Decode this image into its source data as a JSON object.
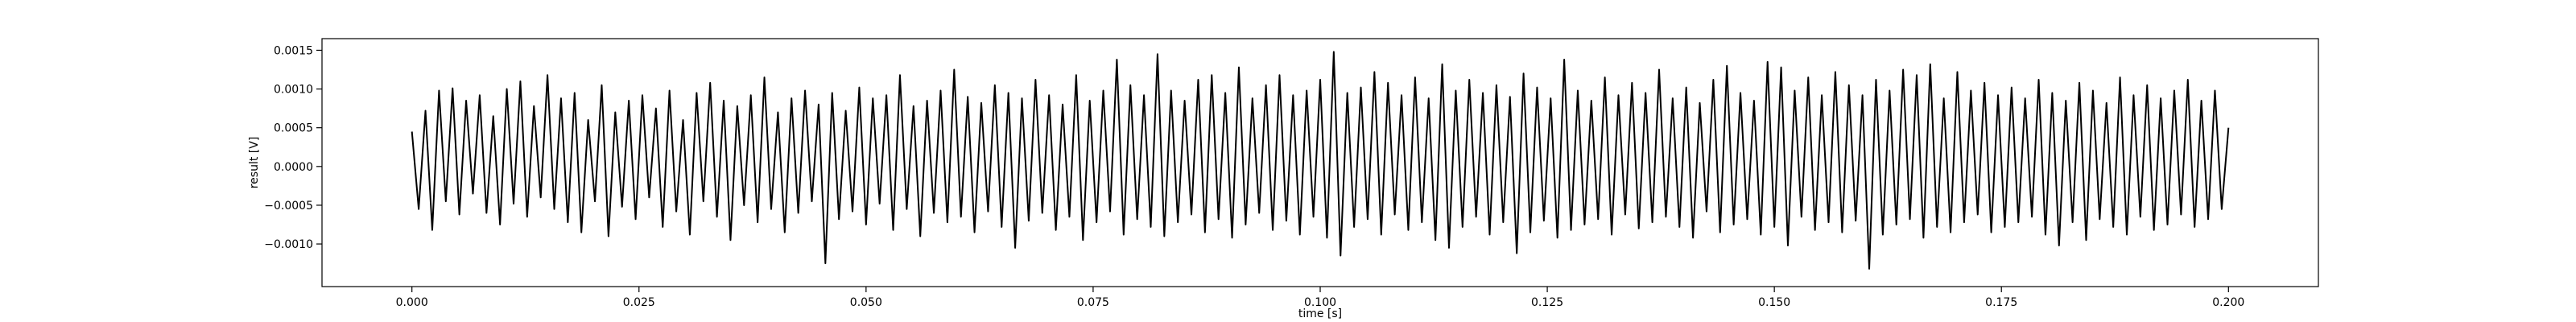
{
  "chart_data": {
    "type": "line",
    "title": "",
    "xlabel": "time [s]",
    "ylabel": "result [V]",
    "xlim": [
      -0.0099,
      0.2099
    ],
    "ylim": [
      -0.00155,
      0.00165
    ],
    "grid": false,
    "line_color": "#000000",
    "xticks": [
      0.0,
      0.025,
      0.05,
      0.075,
      0.1,
      0.125,
      0.15,
      0.175,
      0.2
    ],
    "xtick_labels": [
      "0.000",
      "0.025",
      "0.050",
      "0.075",
      "0.100",
      "0.125",
      "0.150",
      "0.175",
      "0.200"
    ],
    "yticks": [
      -0.001,
      -0.0005,
      0.0,
      0.0005,
      0.001,
      0.0015
    ],
    "ytick_labels": [
      "−0.0010",
      "−0.0005",
      "0.0000",
      "0.0005",
      "0.0010",
      "0.0015"
    ],
    "series": [
      {
        "x_start": 0.0,
        "x_end": 0.2,
        "y": [
          0.00045,
          -0.00055,
          0.00072,
          -0.00082,
          0.00098,
          -0.00045,
          0.00101,
          -0.00062,
          0.00085,
          -0.00035,
          0.00092,
          -0.0006,
          0.00065,
          -0.00075,
          0.001,
          -0.00048,
          0.0011,
          -0.00065,
          0.00078,
          -0.0004,
          0.00118,
          -0.00055,
          0.00088,
          -0.00072,
          0.00095,
          -0.00085,
          0.0006,
          -0.00045,
          0.00105,
          -0.0009,
          0.0007,
          -0.00052,
          0.00085,
          -0.00068,
          0.00092,
          -0.0004,
          0.00075,
          -0.00078,
          0.00098,
          -0.00058,
          0.0006,
          -0.00088,
          0.00095,
          -0.00045,
          0.00108,
          -0.00065,
          0.00085,
          -0.00095,
          0.00078,
          -0.0005,
          0.00092,
          -0.00072,
          0.00115,
          -0.00055,
          0.0007,
          -0.00085,
          0.00088,
          -0.0006,
          0.00098,
          -0.00045,
          0.0008,
          -0.00125,
          0.00095,
          -0.00068,
          0.00072,
          -0.00058,
          0.00102,
          -0.00075,
          0.00088,
          -0.00048,
          0.00092,
          -0.00082,
          0.00118,
          -0.00055,
          0.00078,
          -0.0009,
          0.00085,
          -0.0006,
          0.00098,
          -0.00072,
          0.00125,
          -0.00065,
          0.0009,
          -0.00085,
          0.00082,
          -0.00058,
          0.00105,
          -0.00078,
          0.00095,
          -0.00105,
          0.00088,
          -0.0007,
          0.00112,
          -0.0006,
          0.00092,
          -0.00082,
          0.0008,
          -0.00065,
          0.00118,
          -0.00095,
          0.00085,
          -0.00072,
          0.00098,
          -0.00058,
          0.00138,
          -0.00088,
          0.00105,
          -0.00068,
          0.00092,
          -0.00078,
          0.00145,
          -0.0009,
          0.00098,
          -0.00072,
          0.00085,
          -0.00062,
          0.00112,
          -0.00085,
          0.00118,
          -0.00068,
          0.00095,
          -0.00092,
          0.00128,
          -0.00075,
          0.00088,
          -0.0006,
          0.00105,
          -0.00082,
          0.00118,
          -0.0007,
          0.00092,
          -0.00088,
          0.00098,
          -0.00065,
          0.00112,
          -0.00092,
          0.00148,
          -0.00115,
          0.00095,
          -0.00078,
          0.00102,
          -0.00068,
          0.00122,
          -0.00088,
          0.00108,
          -0.00062,
          0.00092,
          -0.00082,
          0.00115,
          -0.00072,
          0.00088,
          -0.00095,
          0.00132,
          -0.00105,
          0.00098,
          -0.00078,
          0.00112,
          -0.00065,
          0.00095,
          -0.00088,
          0.00105,
          -0.00072,
          0.0009,
          -0.00112,
          0.0012,
          -0.00085,
          0.00102,
          -0.0007,
          0.00088,
          -0.00092,
          0.00138,
          -0.00082,
          0.00098,
          -0.00075,
          0.00085,
          -0.00068,
          0.00115,
          -0.00088,
          0.00092,
          -0.00062,
          0.00108,
          -0.0008,
          0.00095,
          -0.00072,
          0.00125,
          -0.00065,
          0.00088,
          -0.00078,
          0.00102,
          -0.00092,
          0.00082,
          -0.00058,
          0.00112,
          -0.00085,
          0.0013,
          -0.00075,
          0.00095,
          -0.00068,
          0.00085,
          -0.00088,
          0.00135,
          -0.00078,
          0.00128,
          -0.00102,
          0.00098,
          -0.00065,
          0.00115,
          -0.00082,
          0.00092,
          -0.00072,
          0.00122,
          -0.00085,
          0.00105,
          -0.0007,
          0.00092,
          -0.00132,
          0.00112,
          -0.00088,
          0.00098,
          -0.00075,
          0.00125,
          -0.00068,
          0.00118,
          -0.00092,
          0.00132,
          -0.00078,
          0.00088,
          -0.00085,
          0.00122,
          -0.00072,
          0.00098,
          -0.00062,
          0.00108,
          -0.00085,
          0.00092,
          -0.00078,
          0.00102,
          -0.00072,
          0.00088,
          -0.00065,
          0.00112,
          -0.00088,
          0.00095,
          -0.00102,
          0.00085,
          -0.00072,
          0.00108,
          -0.00095,
          0.00098,
          -0.00068,
          0.00082,
          -0.00078,
          0.00115,
          -0.00088,
          0.00092,
          -0.00065,
          0.00105,
          -0.00082,
          0.00088,
          -0.00075,
          0.00098,
          -0.00062,
          0.00112,
          -0.00078,
          0.00085,
          -0.00068,
          0.00098,
          -0.00055,
          0.0005
        ]
      }
    ]
  }
}
